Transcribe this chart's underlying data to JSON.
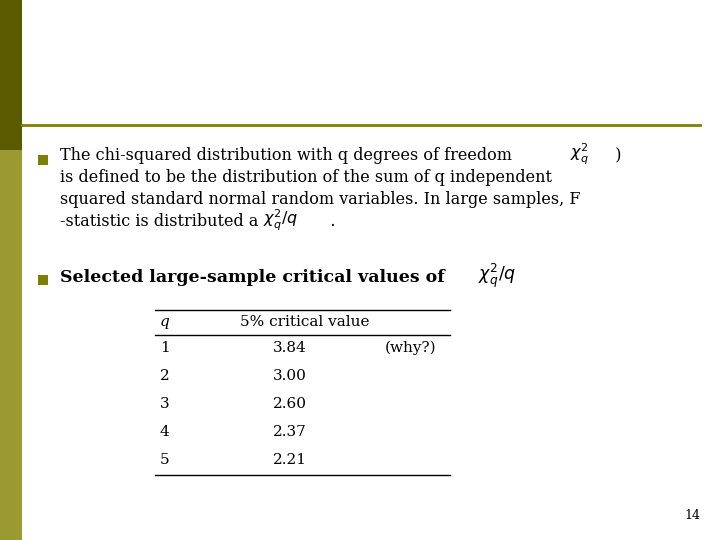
{
  "bg_color": "#ffffff",
  "slide_bg": "#ffffff",
  "left_bar_color": "#6b6b00",
  "left_bar_bottom_color": "#4a4a00",
  "accent_line_color": "#808000",
  "bullet_color": "#808000",
  "text_color": "#000000",
  "page_number": "14",
  "font_size_bullet": 11.5,
  "font_size_bold": 12.5,
  "font_size_table": 11.0,
  "font_size_page": 9,
  "table_rows": [
    [
      "1",
      "3.84",
      "(why?)"
    ],
    [
      "2",
      "3.00",
      ""
    ],
    [
      "3",
      "2.60",
      ""
    ],
    [
      "4",
      "2.37",
      ""
    ],
    [
      "5",
      "2.21",
      ""
    ]
  ]
}
